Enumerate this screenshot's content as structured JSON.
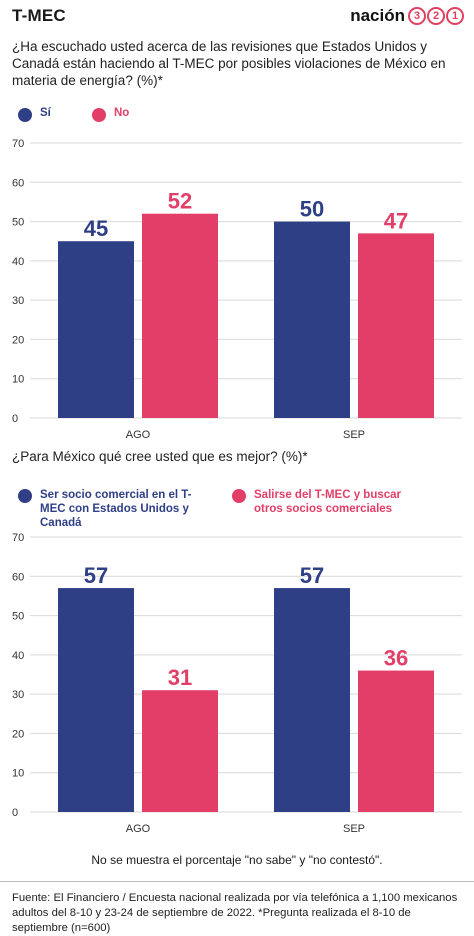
{
  "header": {
    "title": "T-MEC",
    "logo_word": "nación",
    "logo_digits": [
      "3",
      "2",
      "1"
    ]
  },
  "colors": {
    "si": "#2f3f86",
    "no": "#e23e68",
    "grid": "#d9d9d9"
  },
  "chart_data": [
    {
      "type": "bar",
      "title": "¿Ha escuchado usted acerca de las revisiones que Estados Unidos y Canadá están haciendo al T-MEC por posibles violaciones de México en materia de energía?  (%)*",
      "categories": [
        "AGO",
        "SEP"
      ],
      "series": [
        {
          "name": "Sí",
          "values": [
            45,
            50
          ]
        },
        {
          "name": "No",
          "values": [
            52,
            47
          ]
        }
      ],
      "yticks": [
        "0",
        "10",
        "20",
        "30",
        "40",
        "50",
        "60",
        "70"
      ],
      "ylim": [
        0,
        70
      ],
      "grid": true,
      "legend": "top-left"
    },
    {
      "type": "bar",
      "title": "¿Para México qué cree usted que es mejor? (%)*",
      "categories": [
        "AGO",
        "SEP"
      ],
      "series": [
        {
          "name": "Ser socio comercial en el T-MEC con Estados Unidos y Canadá",
          "values": [
            57,
            57
          ]
        },
        {
          "name": "Salirse del T-MEC y buscar otros socios comerciales",
          "values": [
            31,
            36
          ]
        }
      ],
      "yticks": [
        "0",
        "10",
        "20",
        "30",
        "40",
        "50",
        "60",
        "70"
      ],
      "ylim": [
        0,
        70
      ],
      "grid": true,
      "legend": "top-left"
    }
  ],
  "note": "No se muestra el porcentaje \"no sabe\" y \"no contestó\".",
  "source": "Fuente: El Financiero / Encuesta nacional realizada por vía telefónica a 1,100 mexicanos adultos del 8-10 y 23-24 de septiembre de 2022.  *Pregunta realizada el 8-10 de septiembre (n=600)"
}
